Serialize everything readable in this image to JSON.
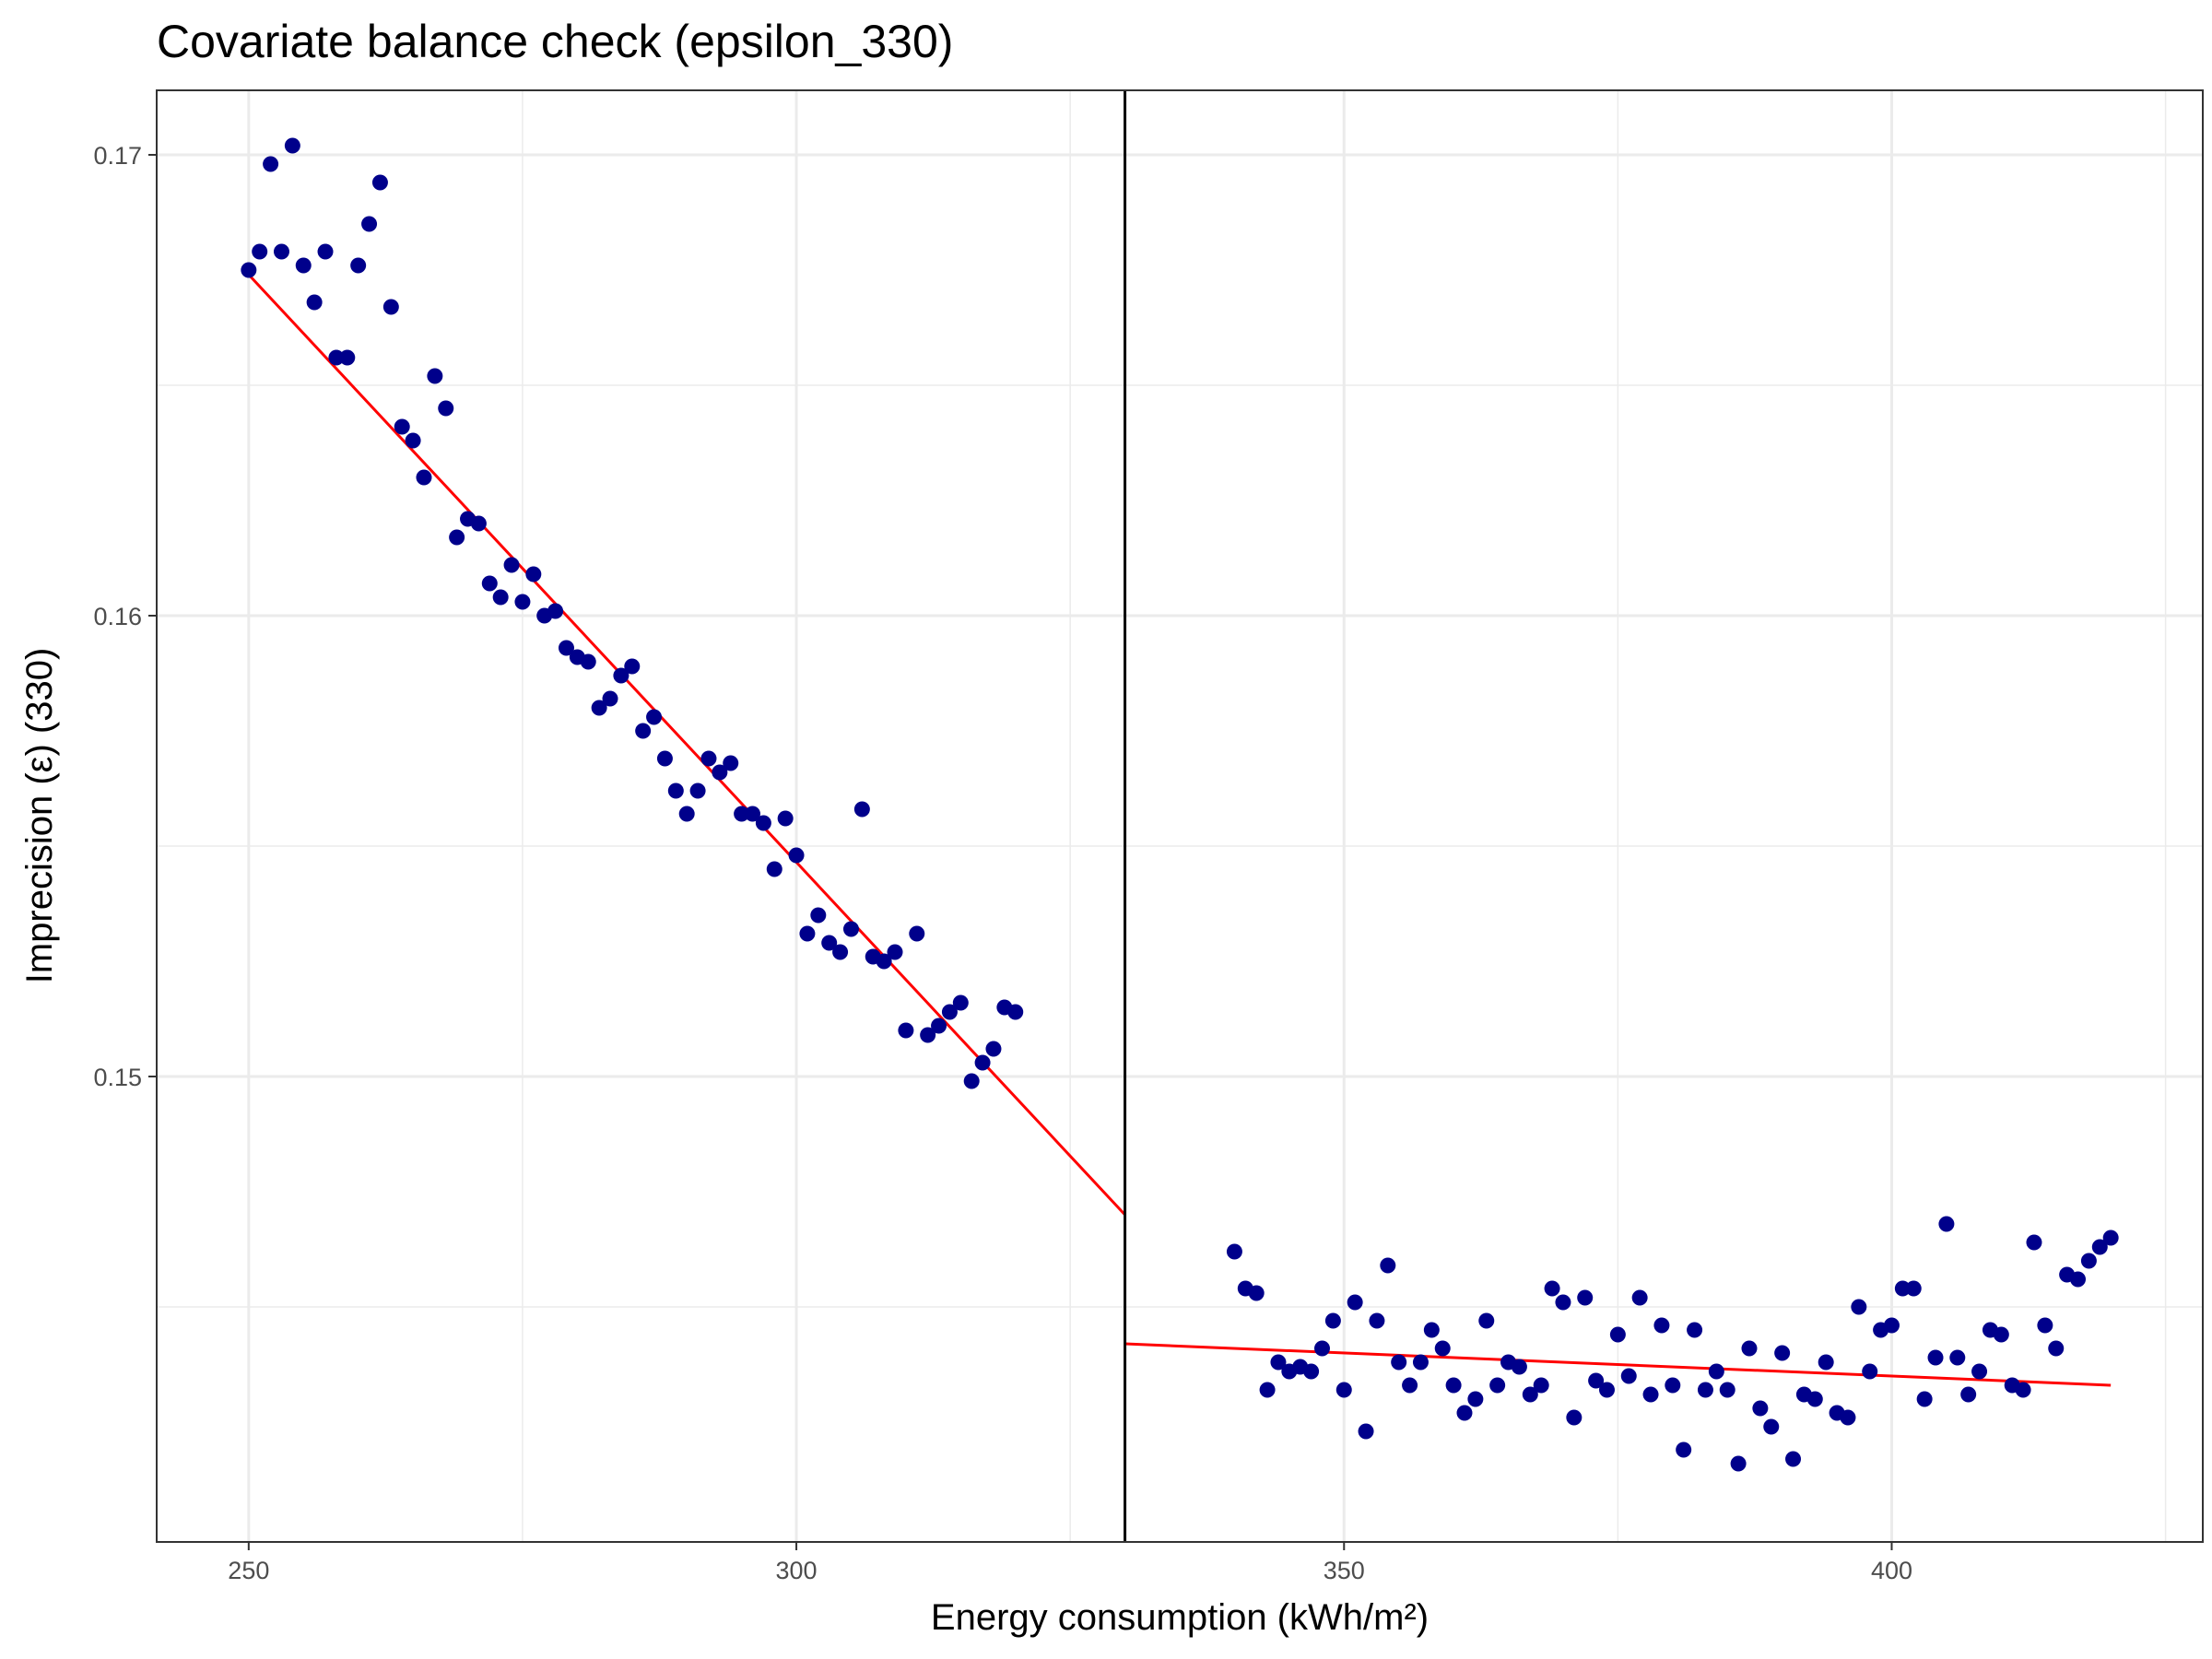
{
  "chart_data": {
    "type": "scatter",
    "title": "Covariate balance check (epsilon_330)",
    "xlabel": "Energy consumption (kWh/m²)",
    "ylabel": "Imprecision (ε) (330)",
    "xlim": [
      241.6,
      428.4
    ],
    "ylim": [
      0.1399,
      0.1714
    ],
    "x_ticks": [
      250,
      300,
      350,
      400
    ],
    "x_tick_labels": [
      "250",
      "300",
      "350",
      "400"
    ],
    "y_ticks": [
      0.15,
      0.16,
      0.17
    ],
    "y_tick_labels": [
      "0.15",
      "0.16",
      "0.17"
    ],
    "grid": true,
    "cutoff": 330,
    "point_color": "#00008B",
    "fit_color": "#FF0000",
    "cutoff_color": "#000000",
    "series": [
      {
        "side": "left",
        "points": [
          [
            250,
            0.1675
          ],
          [
            251,
            0.1679
          ],
          [
            252,
            0.1698
          ],
          [
            253,
            0.1679
          ],
          [
            254,
            0.1702
          ],
          [
            255,
            0.1676
          ],
          [
            256,
            0.1668
          ],
          [
            257,
            0.1679
          ],
          [
            258,
            0.1656
          ],
          [
            259,
            0.1656
          ],
          [
            260,
            0.1676
          ],
          [
            261,
            0.1685
          ],
          [
            262,
            0.1694
          ],
          [
            263,
            0.1667
          ],
          [
            264,
            0.1641
          ],
          [
            265,
            0.1638
          ],
          [
            266,
            0.163
          ],
          [
            267,
            0.1652
          ],
          [
            268,
            0.1645
          ],
          [
            269,
            0.1617
          ],
          [
            270,
            0.1621
          ],
          [
            271,
            0.162
          ],
          [
            272,
            0.1607
          ],
          [
            273,
            0.1604
          ],
          [
            274,
            0.1611
          ],
          [
            275,
            0.1603
          ],
          [
            276,
            0.1609
          ],
          [
            277,
            0.16
          ],
          [
            278,
            0.1601
          ],
          [
            279,
            0.1593
          ],
          [
            280,
            0.1591
          ],
          [
            281,
            0.159
          ],
          [
            282,
            0.158
          ],
          [
            283,
            0.1582
          ],
          [
            284,
            0.1587
          ],
          [
            285,
            0.1589
          ],
          [
            286,
            0.1575
          ],
          [
            287,
            0.1578
          ],
          [
            288,
            0.1569
          ],
          [
            289,
            0.1562
          ],
          [
            290,
            0.1557
          ],
          [
            291,
            0.1562
          ],
          [
            292,
            0.1569
          ],
          [
            293,
            0.1566
          ],
          [
            294,
            0.1568
          ],
          [
            295,
            0.1557
          ],
          [
            296,
            0.1557
          ],
          [
            297,
            0.1555
          ],
          [
            298,
            0.1545
          ],
          [
            299,
            0.1556
          ],
          [
            300,
            0.1548
          ],
          [
            301,
            0.1531
          ],
          [
            302,
            0.1535
          ],
          [
            303,
            0.1529
          ],
          [
            304,
            0.1527
          ],
          [
            305,
            0.1532
          ],
          [
            306,
            0.1558
          ],
          [
            307,
            0.1526
          ],
          [
            308,
            0.1525
          ],
          [
            309,
            0.1527
          ],
          [
            310,
            0.151
          ],
          [
            311,
            0.1531
          ],
          [
            312,
            0.1509
          ],
          [
            313,
            0.1511
          ],
          [
            314,
            0.1514
          ],
          [
            315,
            0.1516
          ],
          [
            316,
            0.1499
          ],
          [
            317,
            0.1503
          ],
          [
            318,
            0.1506
          ],
          [
            319,
            0.1515
          ],
          [
            320,
            0.1514
          ]
        ],
        "fit": {
          "x": [
            250,
            330
          ],
          "y": [
            0.1674,
            0.147
          ]
        }
      },
      {
        "side": "right",
        "points": [
          [
            340,
            0.1462
          ],
          [
            341,
            0.1454
          ],
          [
            342,
            0.1453
          ],
          [
            343,
            0.1432
          ],
          [
            344,
            0.1438
          ],
          [
            345,
            0.1436
          ],
          [
            346,
            0.1437
          ],
          [
            347,
            0.1436
          ],
          [
            348,
            0.1441
          ],
          [
            349,
            0.1447
          ],
          [
            350,
            0.1432
          ],
          [
            351,
            0.1451
          ],
          [
            352,
            0.1423
          ],
          [
            353,
            0.1447
          ],
          [
            354,
            0.1459
          ],
          [
            355,
            0.1438
          ],
          [
            356,
            0.1433
          ],
          [
            357,
            0.1438
          ],
          [
            358,
            0.1445
          ],
          [
            359,
            0.1441
          ],
          [
            360,
            0.1433
          ],
          [
            361,
            0.1427
          ],
          [
            362,
            0.143
          ],
          [
            363,
            0.1447
          ],
          [
            364,
            0.1433
          ],
          [
            365,
            0.1438
          ],
          [
            366,
            0.1437
          ],
          [
            367,
            0.1431
          ],
          [
            368,
            0.1433
          ],
          [
            369,
            0.1454
          ],
          [
            370,
            0.1451
          ],
          [
            371,
            0.1426
          ],
          [
            372,
            0.1452
          ],
          [
            373,
            0.1434
          ],
          [
            374,
            0.1432
          ],
          [
            375,
            0.1444
          ],
          [
            376,
            0.1435
          ],
          [
            377,
            0.1452
          ],
          [
            378,
            0.1431
          ],
          [
            379,
            0.1446
          ],
          [
            380,
            0.1433
          ],
          [
            381,
            0.1419
          ],
          [
            382,
            0.1445
          ],
          [
            383,
            0.1432
          ],
          [
            384,
            0.1436
          ],
          [
            385,
            0.1432
          ],
          [
            386,
            0.1416
          ],
          [
            387,
            0.1441
          ],
          [
            388,
            0.1428
          ],
          [
            389,
            0.1424
          ],
          [
            390,
            0.144
          ],
          [
            391,
            0.1417
          ],
          [
            392,
            0.1431
          ],
          [
            393,
            0.143
          ],
          [
            394,
            0.1438
          ],
          [
            395,
            0.1427
          ],
          [
            396,
            0.1426
          ],
          [
            397,
            0.145
          ],
          [
            398,
            0.1436
          ],
          [
            399,
            0.1445
          ],
          [
            400,
            0.1446
          ],
          [
            401,
            0.1454
          ],
          [
            402,
            0.1454
          ],
          [
            403,
            0.143
          ],
          [
            404,
            0.1439
          ],
          [
            405,
            0.1468
          ],
          [
            406,
            0.1439
          ],
          [
            407,
            0.1431
          ],
          [
            408,
            0.1436
          ],
          [
            409,
            0.1445
          ],
          [
            410,
            0.1444
          ],
          [
            411,
            0.1433
          ],
          [
            412,
            0.1432
          ],
          [
            413,
            0.1464
          ],
          [
            414,
            0.1446
          ],
          [
            415,
            0.1441
          ],
          [
            416,
            0.1457
          ],
          [
            417,
            0.1456
          ],
          [
            418,
            0.146
          ],
          [
            419,
            0.1463
          ],
          [
            420,
            0.1465
          ]
        ],
        "fit": {
          "x": [
            330,
            420
          ],
          "y": [
            0.1442,
            0.1433
          ]
        }
      }
    ]
  }
}
